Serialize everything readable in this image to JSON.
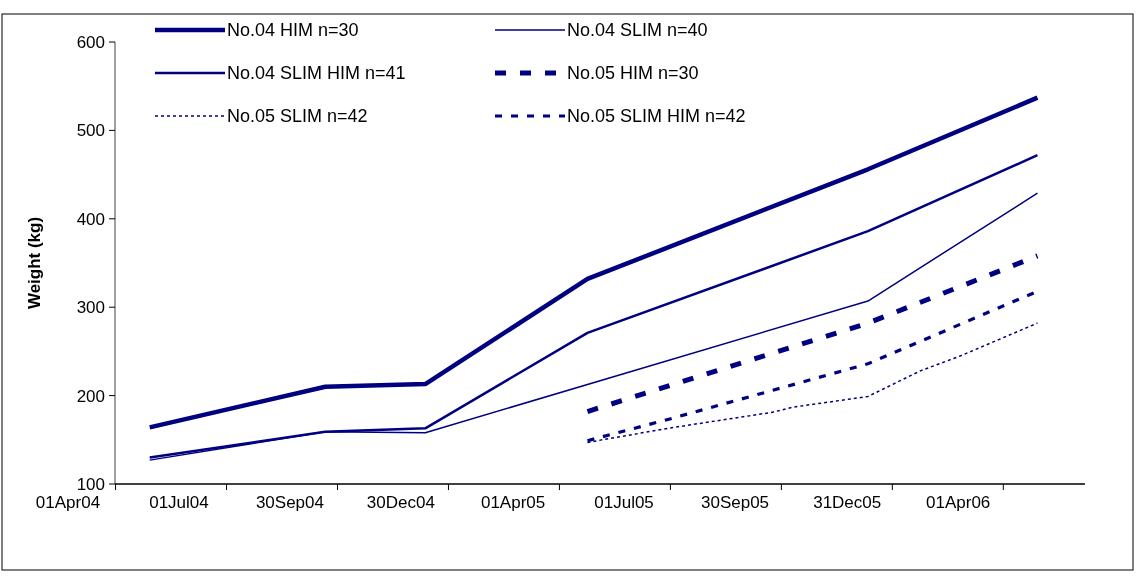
{
  "chart_data": {
    "type": "line",
    "ylabel": "Weight (kg)",
    "ylim": [
      100,
      600
    ],
    "yticks": [
      100,
      200,
      300,
      400,
      500,
      600
    ],
    "xlim": [
      "2004-04-01",
      "2006-07-14"
    ],
    "xticks": [
      {
        "value": "2004-04-01",
        "label": "01Apr04"
      },
      {
        "value": "2004-07-01",
        "label": "01Jul04"
      },
      {
        "value": "2004-09-30",
        "label": "30Sep04"
      },
      {
        "value": "2004-12-30",
        "label": "30Dec04"
      },
      {
        "value": "2005-04-01",
        "label": "01Apr05"
      },
      {
        "value": "2005-07-01",
        "label": "01Jul05"
      },
      {
        "value": "2005-09-30",
        "label": "30Sep05"
      },
      {
        "value": "2005-12-31",
        "label": "31Dec05"
      },
      {
        "value": "2006-04-01",
        "label": "01Apr06"
      },
      {
        "value": "2004-05-10",
        "label": null
      },
      {
        "value": "2004-08-09",
        "label": null
      },
      {
        "value": "2004-11-08",
        "label": null
      },
      {
        "value": "2005-02-07",
        "label": null
      },
      {
        "value": "2005-05-09",
        "label": null
      },
      {
        "value": "2005-08-08",
        "label": null
      },
      {
        "value": "2005-11-07",
        "label": null
      },
      {
        "value": "2006-02-06",
        "label": null
      },
      {
        "value": "2006-05-08",
        "label": null
      }
    ],
    "legend": "top",
    "grid": false,
    "series": [
      {
        "name": "No.04 HIM n=30",
        "color": "#000080",
        "line_style": "solid",
        "x": [
          "2004-06-07",
          "2004-10-29",
          "2005-01-19",
          "2005-06-01",
          "2006-01-17",
          "2006-06-05"
        ],
        "values": [
          164,
          210,
          213,
          332,
          456,
          537
        ]
      },
      {
        "name": "No.04 SLIM n=40",
        "color": "#000080",
        "line_style": "solid",
        "x": [
          "2004-06-07",
          "2004-10-29",
          "2005-01-19",
          "2006-01-17",
          "2006-06-05"
        ],
        "values": [
          127,
          159,
          158,
          307,
          429
        ]
      },
      {
        "name": "No.04 SLIM HIM n=41",
        "color": "#000080",
        "line_style": "solid",
        "x": [
          "2004-06-07",
          "2004-10-29",
          "2005-01-19",
          "2005-06-01",
          "2006-01-17",
          "2006-06-05"
        ],
        "values": [
          130,
          159,
          163,
          271,
          386,
          472
        ]
      },
      {
        "name": "No.05 HIM n=30",
        "color": "#000080",
        "line_style": "dashed",
        "x": [
          "2005-06-01",
          "2006-01-17",
          "2006-06-05"
        ],
        "values": [
          182,
          282,
          358
        ]
      },
      {
        "name": "No.05 SLIM n=42",
        "color": "#000080",
        "line_style": "dotted",
        "x": [
          "2005-06-01",
          "2005-08-06",
          "2005-10-30",
          "2005-11-17",
          "2006-01-17",
          "2006-03-01",
          "2006-04-03",
          "2006-06-05"
        ],
        "values": [
          147,
          163,
          181,
          187,
          199,
          228,
          245,
          282
        ]
      },
      {
        "name": "No.05 SLIM HIM n=42",
        "color": "#000080",
        "line_style": "dashed",
        "x": [
          "2005-06-01",
          "2005-08-06",
          "2006-01-17",
          "2006-06-05"
        ],
        "values": [
          149,
          173,
          236,
          318
        ]
      }
    ]
  }
}
